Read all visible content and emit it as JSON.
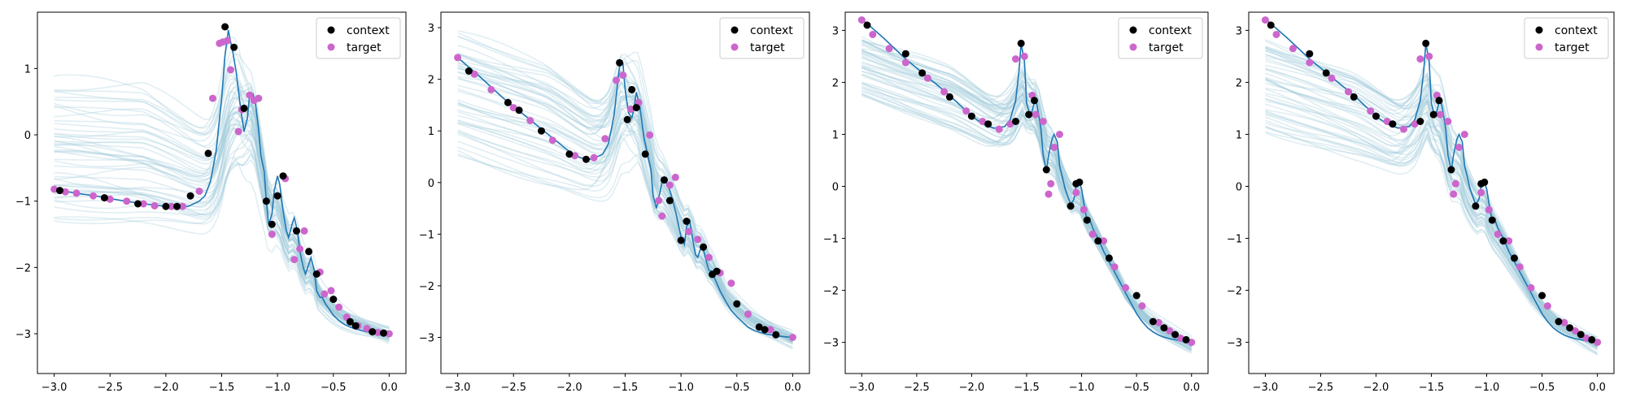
{
  "colors": {
    "context": "#000000",
    "target": "#cc66cc",
    "true_function": "#1f77b4",
    "samples": "#9fc9db",
    "axes": "#000000"
  },
  "legend": {
    "placement": "top-right",
    "context_label": "context",
    "target_label": "target"
  },
  "chart_data": [
    {
      "type": "scatter",
      "title": "",
      "xlabel": "",
      "ylabel": "",
      "xlim": [
        -3.15,
        0.15
      ],
      "ylim": [
        -3.6,
        1.85
      ],
      "xticks": [
        -3.0,
        -2.5,
        -2.0,
        -1.5,
        -1.0,
        -0.5,
        0.0
      ],
      "yticks": [
        -3,
        -2,
        -1,
        0,
        1
      ],
      "grid": false,
      "true_function": {
        "x": [
          -3.0,
          -2.8,
          -2.6,
          -2.4,
          -2.2,
          -2.0,
          -1.9,
          -1.8,
          -1.7,
          -1.65,
          -1.6,
          -1.55,
          -1.5,
          -1.47,
          -1.44,
          -1.42,
          -1.4,
          -1.37,
          -1.33,
          -1.3,
          -1.27,
          -1.25,
          -1.22,
          -1.2,
          -1.17,
          -1.15,
          -1.12,
          -1.1,
          -1.08,
          -1.05,
          -1.03,
          -1.0,
          -0.98,
          -0.95,
          -0.92,
          -0.9,
          -0.87,
          -0.85,
          -0.82,
          -0.8,
          -0.77,
          -0.75,
          -0.72,
          -0.7,
          -0.67,
          -0.65,
          -0.62,
          -0.6,
          -0.57,
          -0.55,
          -0.5,
          -0.45,
          -0.4,
          -0.35,
          -0.3,
          -0.25,
          -0.2,
          -0.15,
          -0.1,
          -0.05,
          0.0
        ],
        "y": [
          -0.82,
          -0.88,
          -0.93,
          -0.99,
          -1.04,
          -1.08,
          -1.09,
          -1.08,
          -1.0,
          -0.92,
          -0.7,
          -0.25,
          0.55,
          1.2,
          1.58,
          1.4,
          1.25,
          0.95,
          0.4,
          0.05,
          0.25,
          0.6,
          0.62,
          0.5,
          0.1,
          -0.3,
          -0.55,
          -1.0,
          -1.35,
          -1.2,
          -0.85,
          -0.62,
          -0.75,
          -1.15,
          -1.45,
          -1.55,
          -1.35,
          -1.25,
          -1.45,
          -1.75,
          -2.0,
          -2.1,
          -1.95,
          -1.85,
          -2.05,
          -2.35,
          -2.45,
          -2.45,
          -2.55,
          -2.6,
          -2.72,
          -2.8,
          -2.86,
          -2.9,
          -2.93,
          -2.95,
          -2.97,
          -2.98,
          -2.99,
          -3.0,
          -3.0
        ]
      },
      "context": {
        "x": [
          -2.95,
          -2.55,
          -2.25,
          -2.0,
          -1.9,
          -1.78,
          -1.62,
          -1.47,
          -1.39,
          -1.3,
          -1.1,
          -1.05,
          -1.0,
          -0.95,
          -0.83,
          -0.72,
          -0.65,
          -0.5,
          -0.35,
          -0.3,
          -0.15,
          -0.05
        ],
        "y": [
          -0.84,
          -0.95,
          -1.04,
          -1.08,
          -1.08,
          -0.92,
          -0.28,
          1.63,
          1.32,
          0.4,
          -1.0,
          -1.35,
          -0.92,
          -0.62,
          -1.45,
          -1.76,
          -2.1,
          -2.48,
          -2.82,
          -2.88,
          -2.97,
          -2.99
        ]
      },
      "target": {
        "x": [
          -3.0,
          -2.9,
          -2.8,
          -2.65,
          -2.5,
          -2.35,
          -2.2,
          -2.1,
          -1.95,
          -1.85,
          -1.7,
          -1.58,
          -1.52,
          -1.49,
          -1.45,
          -1.42,
          -1.35,
          -1.32,
          -1.25,
          -1.21,
          -1.17,
          -1.05,
          -0.93,
          -0.85,
          -0.8,
          -0.76,
          -0.62,
          -0.58,
          -0.52,
          -0.45,
          -0.38,
          -0.28,
          -0.2,
          -0.1,
          0.0
        ],
        "y": [
          -0.82,
          -0.86,
          -0.88,
          -0.92,
          -0.97,
          -1.0,
          -1.04,
          -1.07,
          -1.08,
          -1.08,
          -0.85,
          0.55,
          1.38,
          1.4,
          1.42,
          0.98,
          0.05,
          0.38,
          0.6,
          0.52,
          0.55,
          -1.5,
          -0.66,
          -1.88,
          -1.72,
          -1.45,
          -2.07,
          -2.4,
          -2.35,
          -2.6,
          -2.75,
          -2.88,
          -2.92,
          -2.98,
          -3.0
        ]
      },
      "samples": {
        "count": 48,
        "y_left_range": [
          -1.45,
          0.82
        ],
        "peak_x": -1.3,
        "peak_height": 1.0,
        "y_right": -3.05
      }
    },
    {
      "type": "scatter",
      "title": "",
      "xlabel": "",
      "ylabel": "",
      "xlim": [
        -3.15,
        0.15
      ],
      "ylim": [
        -3.7,
        3.3
      ],
      "xticks": [
        -3.0,
        -2.5,
        -2.0,
        -1.5,
        -1.0,
        -0.5,
        0.0
      ],
      "yticks": [
        -3,
        -2,
        -1,
        0,
        1,
        2,
        3
      ],
      "grid": false,
      "true_function": {
        "x": [
          -3.0,
          -2.8,
          -2.6,
          -2.4,
          -2.2,
          -2.0,
          -1.9,
          -1.8,
          -1.7,
          -1.65,
          -1.6,
          -1.55,
          -1.52,
          -1.5,
          -1.47,
          -1.44,
          -1.42,
          -1.4,
          -1.37,
          -1.33,
          -1.3,
          -1.27,
          -1.25,
          -1.22,
          -1.2,
          -1.17,
          -1.15,
          -1.1,
          -1.05,
          -1.0,
          -0.97,
          -0.95,
          -0.92,
          -0.9,
          -0.87,
          -0.85,
          -0.82,
          -0.8,
          -0.77,
          -0.75,
          -0.72,
          -0.7,
          -0.65,
          -0.6,
          -0.55,
          -0.5,
          -0.45,
          -0.4,
          -0.35,
          -0.3,
          -0.25,
          -0.2,
          -0.15,
          -0.1,
          -0.05,
          0.0
        ],
        "y": [
          2.42,
          2.05,
          1.65,
          1.3,
          0.95,
          0.6,
          0.48,
          0.45,
          0.55,
          0.75,
          1.3,
          2.25,
          2.3,
          1.8,
          1.35,
          1.25,
          1.45,
          1.75,
          1.5,
          0.85,
          0.55,
          0.25,
          -0.25,
          -0.5,
          -0.3,
          0.0,
          0.1,
          -0.15,
          -0.55,
          -1.05,
          -1.2,
          -0.85,
          -0.75,
          -1.05,
          -1.4,
          -1.45,
          -1.25,
          -1.3,
          -1.55,
          -1.7,
          -1.72,
          -1.85,
          -2.1,
          -2.3,
          -2.48,
          -2.6,
          -2.7,
          -2.8,
          -2.86,
          -2.9,
          -2.93,
          -2.95,
          -2.97,
          -2.98,
          -2.99,
          -3.0
        ]
      },
      "context": {
        "x": [
          -2.9,
          -2.55,
          -2.45,
          -2.25,
          -2.0,
          -1.85,
          -1.55,
          -1.48,
          -1.44,
          -1.4,
          -1.32,
          -1.15,
          -1.1,
          -1.0,
          -0.95,
          -0.8,
          -0.72,
          -0.68,
          -0.5,
          -0.3,
          -0.25,
          -0.15
        ],
        "y": [
          2.16,
          1.55,
          1.4,
          1.0,
          0.55,
          0.45,
          2.32,
          1.22,
          1.8,
          1.45,
          0.55,
          0.05,
          -0.35,
          -1.12,
          -0.75,
          -1.25,
          -1.78,
          -1.72,
          -2.35,
          -2.8,
          -2.85,
          -2.95
        ]
      },
      "target": {
        "x": [
          -3.0,
          -2.85,
          -2.7,
          -2.5,
          -2.35,
          -2.15,
          -1.95,
          -1.78,
          -1.68,
          -1.58,
          -1.52,
          -1.45,
          -1.38,
          -1.28,
          -1.2,
          -1.17,
          -1.1,
          -1.05,
          -0.93,
          -0.85,
          -0.75,
          -0.65,
          -0.55,
          -0.4,
          -0.2,
          0.0
        ],
        "y": [
          2.42,
          2.1,
          1.8,
          1.45,
          1.2,
          0.82,
          0.52,
          0.48,
          0.85,
          1.98,
          2.08,
          1.42,
          1.55,
          0.92,
          -0.35,
          -0.65,
          -0.05,
          0.1,
          -0.95,
          -1.1,
          -1.45,
          -1.75,
          -1.95,
          -2.55,
          -2.85,
          -3.0
        ]
      },
      "samples": {
        "count": 48,
        "y_left_range": [
          0.52,
          2.9
        ],
        "peak_x": -1.45,
        "peak_height": 1.1,
        "y_right": -3.1
      }
    },
    {
      "type": "scatter",
      "title": "",
      "xlabel": "",
      "ylabel": "",
      "xlim": [
        -3.15,
        0.15
      ],
      "ylim": [
        -3.6,
        3.35
      ],
      "xticks": [
        -3.0,
        -2.5,
        -2.0,
        -1.5,
        -1.0,
        -0.5,
        0.0
      ],
      "yticks": [
        -3,
        -2,
        -1,
        0,
        1,
        2,
        3
      ],
      "grid": false,
      "true_function": {
        "x": [
          -3.0,
          -2.8,
          -2.6,
          -2.4,
          -2.2,
          -2.0,
          -1.9,
          -1.8,
          -1.7,
          -1.65,
          -1.6,
          -1.57,
          -1.55,
          -1.52,
          -1.5,
          -1.47,
          -1.45,
          -1.42,
          -1.4,
          -1.37,
          -1.35,
          -1.32,
          -1.3,
          -1.27,
          -1.25,
          -1.22,
          -1.2,
          -1.15,
          -1.1,
          -1.07,
          -1.05,
          -1.02,
          -1.0,
          -0.97,
          -0.95,
          -0.92,
          -0.9,
          -0.85,
          -0.8,
          -0.75,
          -0.7,
          -0.65,
          -0.6,
          -0.55,
          -0.5,
          -0.45,
          -0.4,
          -0.35,
          -0.3,
          -0.25,
          -0.2,
          -0.15,
          -0.1,
          -0.05,
          0.0
        ],
        "y": [
          3.22,
          2.85,
          2.45,
          2.1,
          1.75,
          1.35,
          1.2,
          1.12,
          1.15,
          1.28,
          1.65,
          2.2,
          2.75,
          2.4,
          1.6,
          1.35,
          1.45,
          1.7,
          1.5,
          1.1,
          0.6,
          0.3,
          0.6,
          0.9,
          1.0,
          0.85,
          0.4,
          -0.05,
          -0.35,
          -0.25,
          0.0,
          0.08,
          -0.05,
          -0.45,
          -0.65,
          -0.68,
          -0.8,
          -1.0,
          -1.25,
          -1.45,
          -1.65,
          -1.85,
          -2.05,
          -2.25,
          -2.45,
          -2.6,
          -2.72,
          -2.8,
          -2.86,
          -2.9,
          -2.93,
          -2.95,
          -2.97,
          -2.99,
          -3.0
        ]
      },
      "context": {
        "x": [
          -2.95,
          -2.6,
          -2.45,
          -2.2,
          -2.0,
          -1.85,
          -1.6,
          -1.55,
          -1.48,
          -1.43,
          -1.32,
          -1.1,
          -1.05,
          -1.02,
          -0.95,
          -0.85,
          -0.75,
          -0.5,
          -0.35,
          -0.25,
          -0.15,
          -0.05
        ],
        "y": [
          3.1,
          2.55,
          2.18,
          1.72,
          1.35,
          1.2,
          1.25,
          2.75,
          1.38,
          1.65,
          0.32,
          -0.38,
          0.05,
          0.08,
          -0.65,
          -1.05,
          -1.38,
          -2.1,
          -2.6,
          -2.72,
          -2.85,
          -2.95
        ]
      },
      "target": {
        "x": [
          -3.0,
          -2.9,
          -2.75,
          -2.6,
          -2.4,
          -2.25,
          -2.05,
          -1.9,
          -1.75,
          -1.65,
          -1.6,
          -1.52,
          -1.45,
          -1.42,
          -1.35,
          -1.3,
          -1.28,
          -1.25,
          -1.2,
          -1.05,
          -0.98,
          -0.9,
          -0.8,
          -0.7,
          -0.6,
          -0.45,
          -0.3,
          -0.2,
          -0.1,
          0.0
        ],
        "y": [
          3.2,
          2.92,
          2.65,
          2.38,
          2.08,
          1.82,
          1.45,
          1.25,
          1.1,
          1.2,
          2.45,
          2.5,
          1.75,
          1.38,
          1.25,
          -0.15,
          0.05,
          0.75,
          1.0,
          -0.12,
          -0.45,
          -0.92,
          -1.05,
          -1.55,
          -1.95,
          -2.3,
          -2.62,
          -2.78,
          -2.92,
          -3.0
        ]
      },
      "samples": {
        "count": 48,
        "y_left_range": [
          1.75,
          2.85
        ],
        "peak_x": -1.48,
        "peak_height": 0.7,
        "y_right": -3.1
      }
    },
    {
      "type": "scatter",
      "title": "",
      "xlabel": "",
      "ylabel": "",
      "xlim": [
        -3.15,
        0.15
      ],
      "ylim": [
        -3.6,
        3.35
      ],
      "xticks": [
        -3.0,
        -2.5,
        -2.0,
        -1.5,
        -1.0,
        -0.5,
        0.0
      ],
      "yticks": [
        -3,
        -2,
        -1,
        0,
        1,
        2,
        3
      ],
      "grid": false,
      "true_function": {
        "x": [
          -3.0,
          -2.8,
          -2.6,
          -2.4,
          -2.2,
          -2.0,
          -1.9,
          -1.8,
          -1.7,
          -1.65,
          -1.6,
          -1.57,
          -1.55,
          -1.52,
          -1.5,
          -1.47,
          -1.45,
          -1.42,
          -1.4,
          -1.37,
          -1.35,
          -1.32,
          -1.3,
          -1.27,
          -1.25,
          -1.22,
          -1.2,
          -1.15,
          -1.1,
          -1.07,
          -1.05,
          -1.02,
          -1.0,
          -0.97,
          -0.95,
          -0.92,
          -0.9,
          -0.85,
          -0.8,
          -0.75,
          -0.7,
          -0.65,
          -0.6,
          -0.55,
          -0.5,
          -0.45,
          -0.4,
          -0.35,
          -0.3,
          -0.25,
          -0.2,
          -0.15,
          -0.1,
          -0.05,
          0.0
        ],
        "y": [
          3.22,
          2.85,
          2.45,
          2.1,
          1.75,
          1.35,
          1.2,
          1.12,
          1.15,
          1.28,
          1.65,
          2.2,
          2.75,
          2.4,
          1.6,
          1.35,
          1.45,
          1.7,
          1.5,
          1.1,
          0.6,
          0.3,
          0.6,
          0.9,
          1.0,
          0.85,
          0.4,
          -0.05,
          -0.35,
          -0.25,
          0.0,
          0.08,
          -0.05,
          -0.45,
          -0.65,
          -0.68,
          -0.8,
          -1.0,
          -1.25,
          -1.45,
          -1.65,
          -1.85,
          -2.05,
          -2.25,
          -2.45,
          -2.6,
          -2.72,
          -2.8,
          -2.86,
          -2.9,
          -2.93,
          -2.95,
          -2.97,
          -2.99,
          -3.0
        ]
      },
      "context": {
        "x": [
          -2.95,
          -2.6,
          -2.45,
          -2.2,
          -2.0,
          -1.85,
          -1.6,
          -1.55,
          -1.48,
          -1.43,
          -1.32,
          -1.1,
          -1.05,
          -1.02,
          -0.95,
          -0.85,
          -0.75,
          -0.5,
          -0.35,
          -0.25,
          -0.15,
          -0.05
        ],
        "y": [
          3.1,
          2.55,
          2.18,
          1.72,
          1.35,
          1.2,
          1.25,
          2.75,
          1.38,
          1.65,
          0.32,
          -0.38,
          0.05,
          0.08,
          -0.65,
          -1.05,
          -1.38,
          -2.1,
          -2.6,
          -2.72,
          -2.85,
          -2.95
        ]
      },
      "target": {
        "x": [
          -3.0,
          -2.9,
          -2.75,
          -2.6,
          -2.4,
          -2.25,
          -2.05,
          -1.9,
          -1.75,
          -1.65,
          -1.6,
          -1.52,
          -1.45,
          -1.42,
          -1.35,
          -1.3,
          -1.28,
          -1.25,
          -1.2,
          -1.05,
          -0.98,
          -0.9,
          -0.8,
          -0.7,
          -0.6,
          -0.45,
          -0.3,
          -0.2,
          -0.1,
          0.0
        ],
        "y": [
          3.2,
          2.92,
          2.65,
          2.38,
          2.08,
          1.82,
          1.45,
          1.25,
          1.1,
          1.2,
          2.45,
          2.5,
          1.75,
          1.38,
          1.25,
          -0.15,
          0.05,
          0.75,
          1.0,
          -0.12,
          -0.45,
          -0.92,
          -1.05,
          -1.55,
          -1.95,
          -2.3,
          -2.62,
          -2.78,
          -2.92,
          -3.0
        ]
      },
      "samples": {
        "count": 48,
        "y_left_range": [
          1.1,
          2.8
        ],
        "peak_x": -1.5,
        "peak_height": 0.8,
        "y_right": -3.1
      }
    }
  ]
}
